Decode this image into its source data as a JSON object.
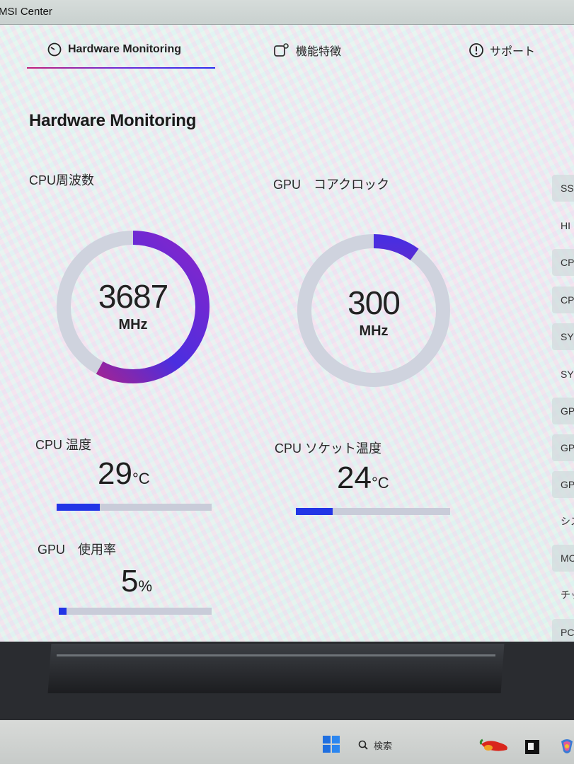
{
  "app": {
    "title": "MSI Center"
  },
  "nav": {
    "tabs": [
      {
        "label": "Hardware Monitoring",
        "icon": "gauge-icon"
      },
      {
        "label": "機能特徴",
        "icon": "feature-icon"
      },
      {
        "label": "サポート",
        "icon": "support-icon"
      }
    ]
  },
  "page": {
    "title": "Hardware Monitoring"
  },
  "cpu_frequency": {
    "label": "CPU周波数",
    "value": "3687",
    "unit": "MHz",
    "fill_fraction": 0.58
  },
  "gpu_core_clock": {
    "label": "GPU　コアクロック",
    "value": "300",
    "unit": "MHz",
    "fill_fraction": 0.1
  },
  "cpu_temperature": {
    "label": "CPU 温度",
    "value": "29",
    "unit": "°C",
    "bar_fraction": 0.28
  },
  "cpu_socket_temperature": {
    "label": "CPU ソケット温度",
    "value": "24",
    "unit": "°C",
    "bar_fraction": 0.24
  },
  "gpu_usage": {
    "label": "GPU　使用率",
    "value": "5",
    "unit": "%",
    "bar_fraction": 0.05
  },
  "sidebar": {
    "items": [
      "SS",
      "HI",
      "CP",
      "CP",
      "SY",
      "SY",
      "GP",
      "GP",
      "GP",
      "シス",
      "MC",
      "チッ",
      "PCI"
    ]
  },
  "taskbar": {
    "search_placeholder": "検索"
  },
  "colors": {
    "accent_blue": "#2235e6",
    "accent_purple": "#8a25c9",
    "accent_magenta": "#c0207a",
    "track_gray": "#c9ccd9"
  }
}
